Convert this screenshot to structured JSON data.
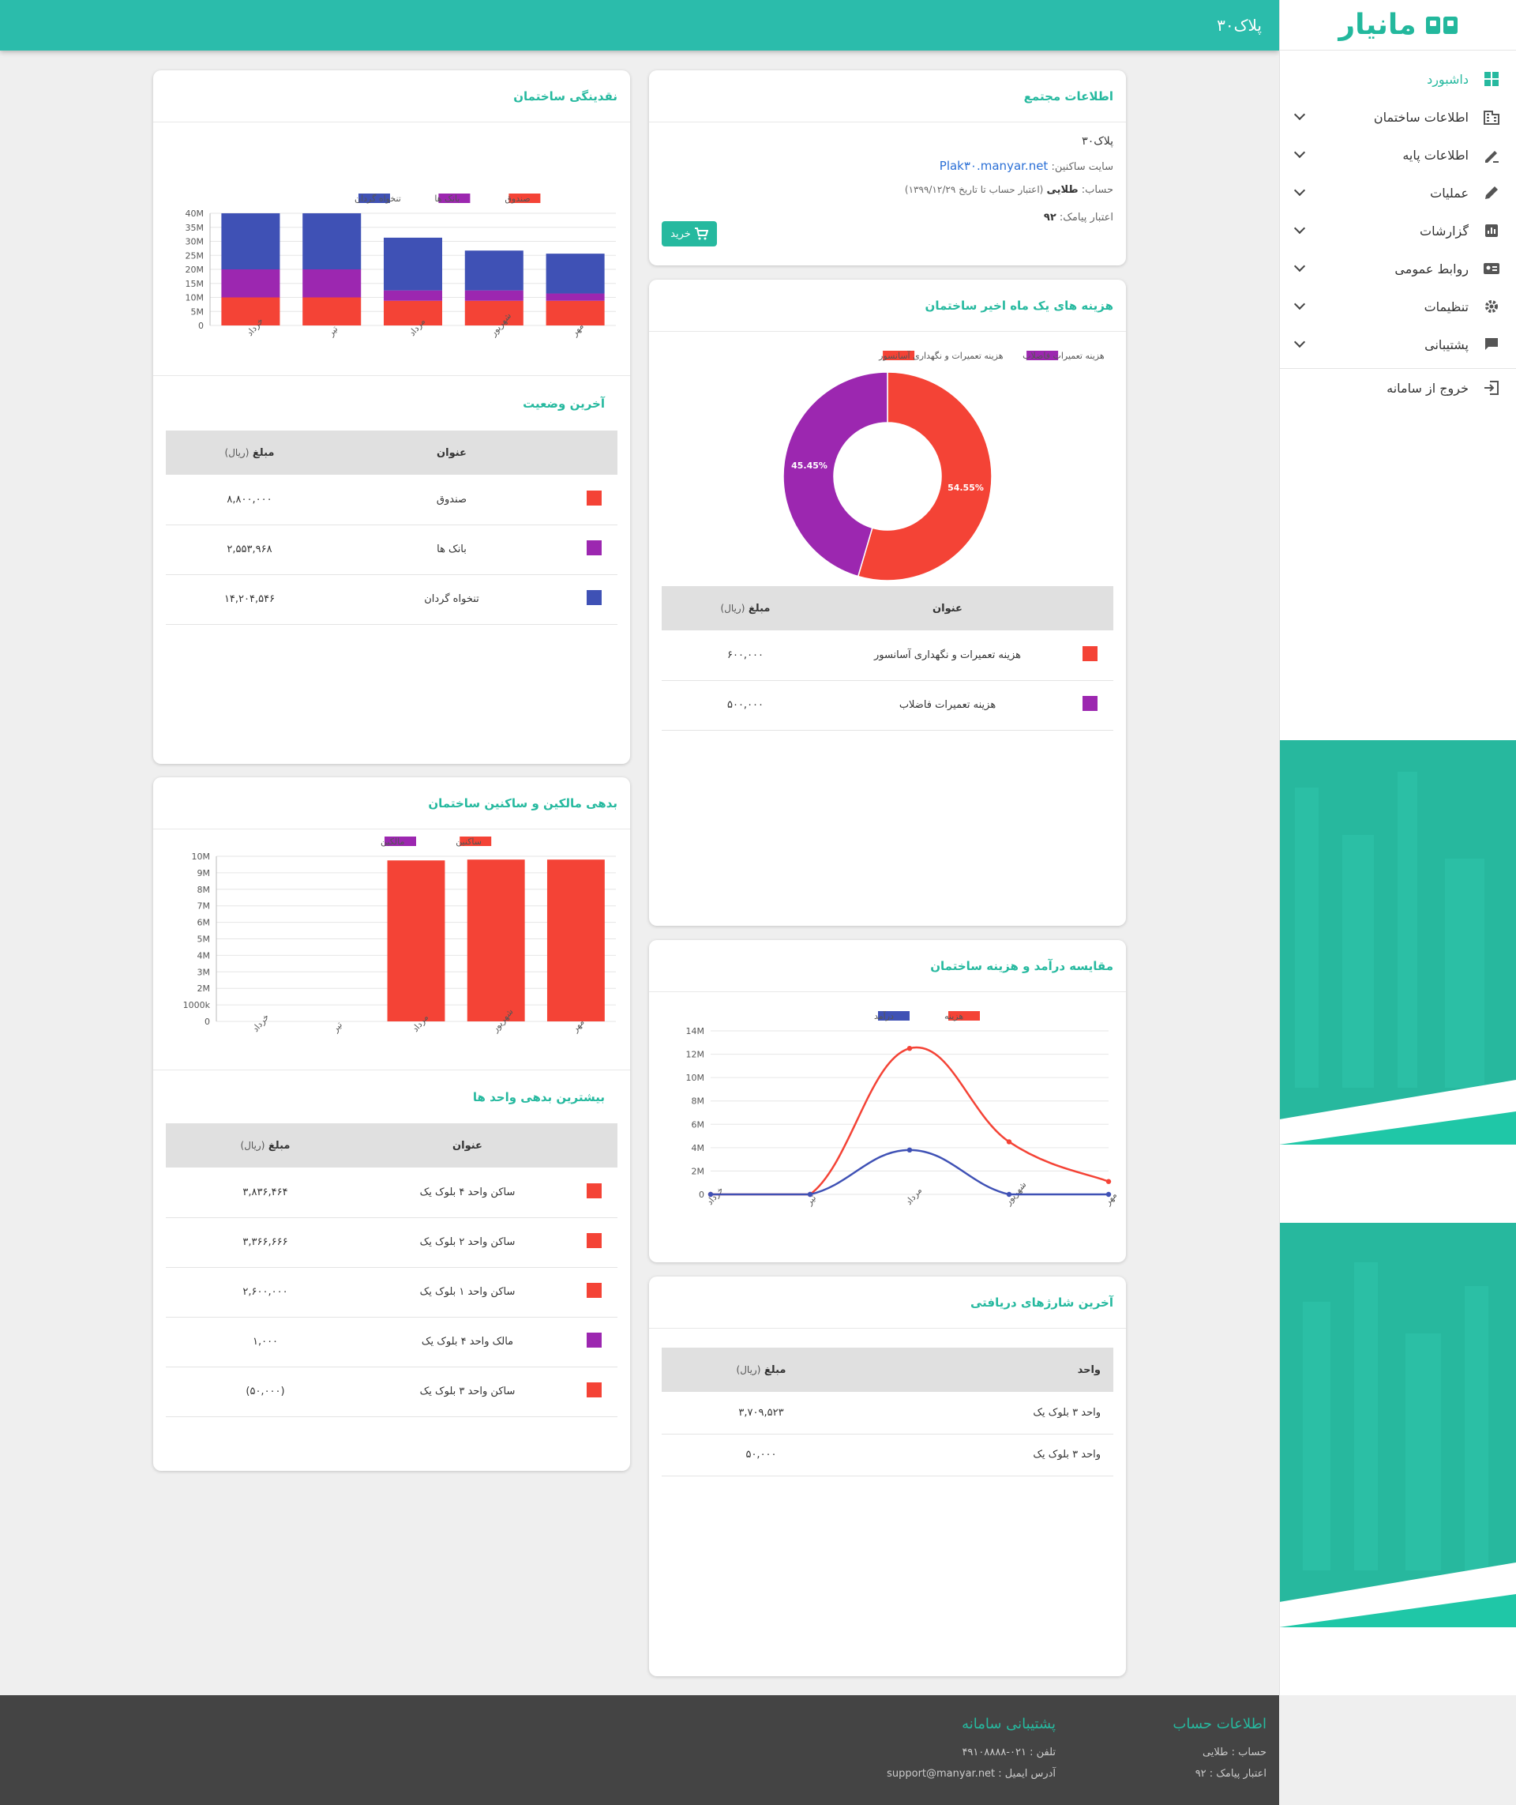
{
  "topbar": {
    "title": "پلاک۳۰"
  },
  "brand": {
    "name": "مانیار"
  },
  "sidebar": {
    "items": [
      {
        "label": "داشبورد",
        "icon": "dashboard-icon",
        "active": true,
        "expandable": false
      },
      {
        "label": "اطلاعات ساختمان",
        "icon": "building-icon",
        "expandable": true
      },
      {
        "label": "اطلاعات پایه",
        "icon": "base-info-icon",
        "expandable": true
      },
      {
        "label": "عملیات",
        "icon": "pencil-icon",
        "expandable": true
      },
      {
        "label": "گزارشات",
        "icon": "report-icon",
        "expandable": true
      },
      {
        "label": "روابط عمومی",
        "icon": "contact-card-icon",
        "expandable": true
      },
      {
        "label": "تنظیمات",
        "icon": "gear-icon",
        "expandable": true
      },
      {
        "label": "پشتیبانی",
        "icon": "chat-icon",
        "expandable": true
      }
    ],
    "logout": {
      "label": "خروج از سامانه",
      "icon": "logout-icon"
    }
  },
  "complex_info": {
    "title": "اطلاعات مجتمع",
    "name": "پلاک۳۰",
    "site_label": "سایت ساکنین:",
    "site_url": "Plak۳۰.manyar.net",
    "account_label": "حساب:",
    "account_type": "طلایی",
    "account_validity": "(اعتبار حساب تا تاریخ ۱۳۹۹/۱۲/۲۹)",
    "sms_label": "اعتبار پیامک:",
    "sms_value": "۹۲",
    "buy_button": "خرید"
  },
  "liquidity": {
    "title": "نقدینگی ساختمان",
    "status_title": "آخرین وضعیت",
    "table_headers": {
      "title": "عنوان",
      "amount": "مبلغ",
      "unit": "(ریال)"
    },
    "rows": [
      {
        "title": "صندوق",
        "amount": "۸,۸۰۰,۰۰۰",
        "color": "#f44336"
      },
      {
        "title": "بانک ها",
        "amount": "۲,۵۵۳,۹۶۸",
        "color": "#9c27b0"
      },
      {
        "title": "تنخواه گردان",
        "amount": "۱۴,۲۰۴,۵۴۶",
        "color": "#3f51b5"
      }
    ]
  },
  "debts": {
    "title": "بدهی مالکین و ساکنین ساختمان",
    "top_title": "بیشترین بدهی واحد ها",
    "table_headers": {
      "title": "عنوان",
      "amount": "مبلغ",
      "unit": "(ریال)"
    },
    "rows": [
      {
        "title": "ساکن واحد ۴ بلوک یک",
        "amount": "۳,۸۳۶,۴۶۴",
        "color": "#f44336"
      },
      {
        "title": "ساکن واحد ۲ بلوک یک",
        "amount": "۳,۳۶۶,۶۶۶",
        "color": "#f44336"
      },
      {
        "title": "ساکن واحد ۱ بلوک یک",
        "amount": "۲,۶۰۰,۰۰۰",
        "color": "#f44336"
      },
      {
        "title": "مالک واحد ۴ بلوک یک",
        "amount": "۱,۰۰۰",
        "color": "#9c27b0"
      },
      {
        "title": "ساکن واحد ۳ بلوک یک",
        "amount": "(۵۰,۰۰۰)",
        "color": "#f44336"
      }
    ]
  },
  "expenses": {
    "title": "هزینه های یک ماه اخیر ساختمان",
    "table_headers": {
      "title": "عنوان",
      "amount": "مبلغ",
      "unit": "(ریال)"
    },
    "rows": [
      {
        "title": "هزینه تعمیرات و نگهداری آسانسور",
        "amount": "۶۰۰,۰۰۰",
        "color": "#f44336"
      },
      {
        "title": "هزینه تعمیرات فاضلاب",
        "amount": "۵۰۰,۰۰۰",
        "color": "#9c27b0"
      }
    ]
  },
  "income_expense": {
    "title": "مقایسه درآمد و هزینه ساختمان"
  },
  "charges": {
    "title": "آخرین شارژهای دریافتی",
    "table_headers": {
      "unit_col": "واحد",
      "amount": "مبلغ",
      "unit": "(ریال)"
    },
    "rows": [
      {
        "unit_name": "واحد ۳ بلوک یک",
        "amount": "۳,۷۰۹,۵۲۳"
      },
      {
        "unit_name": "واحد ۳ بلوک یک",
        "amount": "۵۰,۰۰۰"
      }
    ]
  },
  "footer": {
    "account": {
      "title": "اطلاعات حساب",
      "type": "حساب : طلایی",
      "sms": "اعتبار پیامک : ۹۲"
    },
    "support": {
      "title": "پشتیبانی سامانه",
      "phone": "تلفن : ۰۲۱-۴۹۱۰۸۸۸۸",
      "email": "آدرس ایمیل : support@manyar.net"
    }
  },
  "chart_data": [
    {
      "id": "liquidity",
      "type": "bar",
      "stacked": true,
      "categories": [
        "خرداد",
        "تیر",
        "مرداد",
        "شهریور",
        "مهر"
      ],
      "series": [
        {
          "name": "صندوق",
          "color": "#f44336",
          "values": [
            10,
            10,
            8.8,
            8.8,
            8.8
          ]
        },
        {
          "name": "بانک ها",
          "color": "#9c27b0",
          "values": [
            10,
            10,
            3.7,
            3.7,
            2.6
          ]
        },
        {
          "name": "تنخواه گردان",
          "color": "#3f51b5",
          "values": [
            20,
            20,
            18.8,
            14.2,
            14.2
          ]
        }
      ],
      "y_unit": "M",
      "ylim": [
        0,
        40
      ],
      "y_ticks": [
        "0",
        "5M",
        "10M",
        "15M",
        "20M",
        "25M",
        "30M",
        "35M",
        "40M"
      ],
      "legend": "top"
    },
    {
      "id": "debts",
      "type": "bar",
      "stacked": true,
      "categories": [
        "خرداد",
        "تیر",
        "مرداد",
        "شهریور",
        "مهر"
      ],
      "series": [
        {
          "name": "ساکنین",
          "color": "#f44336",
          "values": [
            0,
            0,
            9.75,
            9.8,
            9.8
          ]
        },
        {
          "name": "مالکین",
          "color": "#9c27b0",
          "values": [
            0,
            0,
            0,
            0,
            0
          ]
        }
      ],
      "y_unit": "M",
      "ylim": [
        0,
        10
      ],
      "y_ticks": [
        "0",
        "1000k",
        "2M",
        "3M",
        "4M",
        "5M",
        "6M",
        "7M",
        "8M",
        "9M",
        "10M"
      ],
      "legend": "top"
    },
    {
      "id": "expenses",
      "type": "pie",
      "donut": true,
      "slices": [
        {
          "name": "هزینه تعمیرات و نگهداری آسانسور",
          "value": 54.55,
          "label": "54.55%",
          "color": "#f44336"
        },
        {
          "name": "هزینه تعمیرات فاضلاب",
          "value": 45.45,
          "label": "45.45%",
          "color": "#9c27b0"
        }
      ],
      "legend": "top"
    },
    {
      "id": "income_expense",
      "type": "line",
      "categories": [
        "خرداد",
        "تیر",
        "مرداد",
        "شهریور",
        "مهر"
      ],
      "series": [
        {
          "name": "هزینه",
          "color": "#f44336",
          "values": [
            0,
            0,
            12.5,
            4.5,
            1.1
          ]
        },
        {
          "name": "درآمد",
          "color": "#3f51b5",
          "values": [
            0,
            0,
            3.8,
            0,
            0
          ]
        }
      ],
      "y_unit": "M",
      "ylim": [
        0,
        14
      ],
      "y_ticks": [
        "0",
        "2M",
        "4M",
        "6M",
        "8M",
        "10M",
        "12M",
        "14M"
      ],
      "legend": "top"
    }
  ]
}
